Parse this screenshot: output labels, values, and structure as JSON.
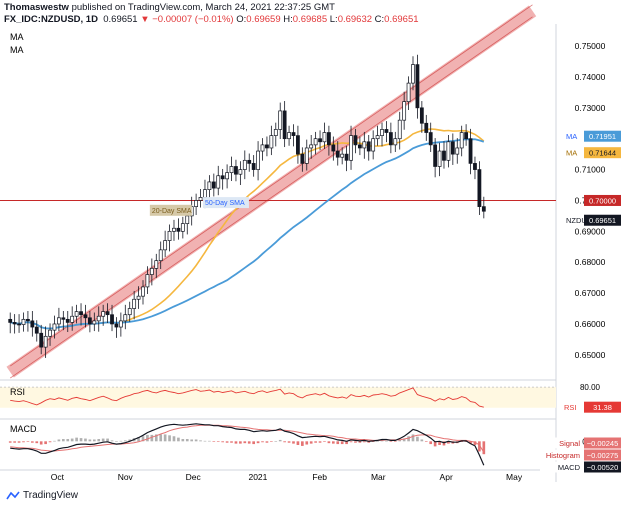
{
  "header": {
    "author": "Thomaswestw",
    "published": "published on TradingView.com, March 24, 2021 22:37:25 GMT",
    "symbol": "FX_IDC:NZDUSD, 1D",
    "last": "0.69651",
    "change": "▼ −0.00007 (−0.01%)",
    "o_label": "O:",
    "o_value": "0.69659",
    "h_label": "H:",
    "h_value": "0.69685",
    "l_label": "L:",
    "l_value": "0.69632",
    "c_label": "C:",
    "c_value": "0.69651"
  },
  "footer": {
    "brand": "TradingView"
  },
  "colors": {
    "up": "#131722",
    "down": "#131722",
    "bull_fill": "#ffffff",
    "ma_fast": "#f5b73f",
    "ma_slow": "#4a9bd8",
    "trend": "#e57373",
    "hline": "#c62828",
    "rsi": "#e53935",
    "macd": "#131722",
    "signal": "#e57373",
    "hist_pos": "#b0b0b0",
    "hist_neg": "#e57373"
  },
  "chart_data": [
    {
      "type": "candlestick",
      "legend": [
        "MA",
        "MA"
      ],
      "x_labels": [
        "Oct",
        "Nov",
        "Dec",
        "2021",
        "Feb",
        "Mar",
        "Apr",
        "May"
      ],
      "y_ticks": [
        "0.75000",
        "0.74000",
        "0.73000",
        "0.72000",
        "0.71000",
        "0.70000",
        "0.69000",
        "0.68000",
        "0.67000",
        "0.66000",
        "0.65000"
      ],
      "ylim": [
        0.6425,
        0.7565
      ],
      "annotations": {
        "ma_slow_label": "50-Day SMA",
        "ma_fast_label": "20-Day SMA"
      },
      "price_tags": [
        {
          "name": "MA",
          "value": "0.71951"
        },
        {
          "name": "MA",
          "value": "0.71644"
        },
        {
          "name": "",
          "value": "0.70000"
        },
        {
          "name": "NZDUSD",
          "value": "0.69651"
        }
      ],
      "ma_fast_value": 0.71644,
      "ma_slow_value": 0.71951,
      "horizontal_line": 0.7,
      "trend_channel": [
        [
          0,
          0.647
        ],
        [
          118,
          0.764
        ]
      ],
      "closes": [
        0.6605,
        0.66,
        0.6598,
        0.6615,
        0.661,
        0.659,
        0.657,
        0.6525,
        0.656,
        0.658,
        0.66,
        0.662,
        0.6615,
        0.6605,
        0.6625,
        0.664,
        0.663,
        0.662,
        0.66,
        0.661,
        0.6625,
        0.664,
        0.663,
        0.66,
        0.659,
        0.661,
        0.663,
        0.665,
        0.668,
        0.669,
        0.672,
        0.676,
        0.678,
        0.6805,
        0.684,
        0.687,
        0.69,
        0.691,
        0.69,
        0.6925,
        0.695,
        0.698,
        0.7,
        0.701,
        0.7035,
        0.706,
        0.704,
        0.708,
        0.707,
        0.709,
        0.711,
        0.7085,
        0.71,
        0.713,
        0.712,
        0.71,
        0.716,
        0.718,
        0.717,
        0.721,
        0.723,
        0.729,
        0.72,
        0.722,
        0.721,
        0.715,
        0.712,
        0.717,
        0.718,
        0.72,
        0.719,
        0.722,
        0.718,
        0.716,
        0.714,
        0.715,
        0.713,
        0.721,
        0.718,
        0.717,
        0.719,
        0.716,
        0.72,
        0.721,
        0.723,
        0.722,
        0.718,
        0.72,
        0.726,
        0.732,
        0.738,
        0.744,
        0.73,
        0.725,
        0.722,
        0.718,
        0.711,
        0.716,
        0.713,
        0.719,
        0.715,
        0.717,
        0.722,
        0.72,
        0.712,
        0.71,
        0.698,
        0.69651
      ],
      "hl_range": [
        0.0022,
        0.0035
      ]
    },
    {
      "type": "line",
      "title": "RSI",
      "y_ticks": [
        "80.00"
      ],
      "ylim": [
        10,
        90
      ],
      "band": [
        30,
        80
      ],
      "last_label": "RSI",
      "last_value": "31.38",
      "values": [
        48,
        46,
        45,
        47,
        44,
        40,
        37,
        42,
        48,
        52,
        50,
        54,
        51,
        48,
        53,
        55,
        52,
        50,
        47,
        51,
        55,
        58,
        54,
        49,
        47,
        53,
        57,
        60,
        64,
        66,
        70,
        72,
        68,
        66,
        70,
        72,
        69,
        67,
        64,
        66,
        69,
        72,
        74,
        70,
        71,
        73,
        68,
        70,
        67,
        69,
        71,
        66,
        68,
        70,
        66,
        64,
        69,
        71,
        67,
        70,
        72,
        75,
        63,
        66,
        64,
        57,
        54,
        60,
        62,
        64,
        61,
        65,
        59,
        56,
        54,
        56,
        53,
        62,
        58,
        57,
        60,
        56,
        61,
        62,
        64,
        62,
        58,
        60,
        66,
        70,
        74,
        78,
        62,
        58,
        55,
        52,
        46,
        52,
        49,
        55,
        50,
        52,
        57,
        54,
        45,
        43,
        34,
        31.38
      ]
    },
    {
      "type": "line",
      "title": "MACD",
      "ylim": [
        -0.0058,
        0.0042
      ],
      "tags": [
        {
          "name": "Signal",
          "value": "−0.00245"
        },
        {
          "name": "Histogram",
          "value": "−0.00275"
        },
        {
          "name": "MACD",
          "value": "−0.00520"
        }
      ],
      "macd": [
        -0.0015,
        -0.0016,
        -0.0017,
        -0.0016,
        -0.0016,
        -0.0018,
        -0.0021,
        -0.0026,
        -0.0026,
        -0.0023,
        -0.002,
        -0.0016,
        -0.0014,
        -0.0013,
        -0.001,
        -0.0007,
        -0.0006,
        -0.0006,
        -0.0007,
        -0.0006,
        -0.0004,
        -0.0002,
        -0.0001,
        -0.0004,
        -0.0006,
        -0.0005,
        -0.0003,
        0.0,
        0.0004,
        0.0008,
        0.0013,
        0.0019,
        0.0023,
        0.0027,
        0.0031,
        0.0034,
        0.0036,
        0.0037,
        0.0036,
        0.0035,
        0.0036,
        0.0037,
        0.0038,
        0.0037,
        0.0036,
        0.0036,
        0.0034,
        0.0034,
        0.0032,
        0.0031,
        0.003,
        0.0027,
        0.0026,
        0.0026,
        0.0024,
        0.0021,
        0.0022,
        0.0023,
        0.0022,
        0.0023,
        0.0024,
        0.0027,
        0.0022,
        0.002,
        0.0017,
        0.0012,
        0.0008,
        0.0009,
        0.001,
        0.0011,
        0.001,
        0.0011,
        0.0008,
        0.0006,
        0.0003,
        0.0002,
        0.0,
        0.0003,
        0.0002,
        0.0001,
        0.0002,
        0.0,
        0.0001,
        0.0002,
        0.0004,
        0.0004,
        0.0002,
        0.0002,
        0.0006,
        0.0011,
        0.0018,
        0.0026,
        0.0023,
        0.0018,
        0.0013,
        0.0007,
        -0.0001,
        0.0,
        -0.0003,
        0.0,
        -0.0002,
        -0.0002,
        0.0001,
        0.0001,
        -0.0005,
        -0.001,
        -0.003,
        -0.0052
      ],
      "signal": [
        -0.0012,
        -0.0013,
        -0.0014,
        -0.0014,
        -0.0015,
        -0.0015,
        -0.0017,
        -0.0019,
        -0.002,
        -0.0021,
        -0.0021,
        -0.002,
        -0.0019,
        -0.0018,
        -0.0016,
        -0.0015,
        -0.0013,
        -0.0012,
        -0.0011,
        -0.001,
        -0.0009,
        -0.0008,
        -0.0007,
        -0.0006,
        -0.0006,
        -0.0006,
        -0.0005,
        -0.0004,
        -0.0003,
        -0.0001,
        0.0002,
        0.0005,
        0.0009,
        0.0012,
        0.0016,
        0.0019,
        0.0023,
        0.0026,
        0.0028,
        0.003,
        0.0031,
        0.0033,
        0.0034,
        0.0035,
        0.0035,
        0.0035,
        0.0035,
        0.0035,
        0.0034,
        0.0034,
        0.0033,
        0.0032,
        0.0031,
        0.003,
        0.0029,
        0.0027,
        0.0026,
        0.0025,
        0.0025,
        0.0024,
        0.0024,
        0.0024,
        0.0024,
        0.0023,
        0.0022,
        0.002,
        0.0018,
        0.0016,
        0.0015,
        0.0014,
        0.0013,
        0.0012,
        0.0012,
        0.0011,
        0.0009,
        0.0008,
        0.0006,
        0.0005,
        0.0005,
        0.0004,
        0.0004,
        0.0003,
        0.0002,
        0.0002,
        0.0002,
        0.0003,
        0.0003,
        0.0003,
        0.0003,
        0.0005,
        0.0007,
        0.0011,
        0.0013,
        0.0014,
        0.0014,
        0.0013,
        0.001,
        0.0008,
        0.0006,
        0.0005,
        0.0003,
        0.0002,
        0.0002,
        0.0002,
        0.0,
        -0.0002,
        -0.0008,
        -0.0024
      ]
    }
  ]
}
